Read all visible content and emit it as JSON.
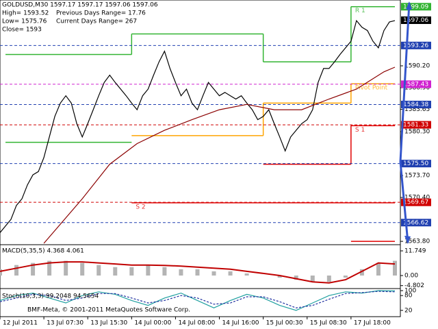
{
  "chart_data": {
    "type": "line",
    "title": "GOLDUSD,M30  1597.17 1597.17 1597.06 1597.06",
    "info": [
      "High= 1593.52",
      "Low= 1575.76",
      "Close= 1593",
      "Previous Days Range= 17.76",
      "Current Days Range= 267"
    ],
    "footer": "BMF-Meta, © 2001-2011 MetaQuotes Software Corp.",
    "xlim": [
      0,
      73
    ],
    "xticks": [
      {
        "value": 0,
        "label": "12 Jul 2011"
      },
      {
        "value": 8,
        "label": "13 Jul 07:30"
      },
      {
        "value": 16,
        "label": "13 Jul 15:30"
      },
      {
        "value": 24,
        "label": "14 Jul 00:00"
      },
      {
        "value": 32,
        "label": "14 Jul 08:00"
      },
      {
        "value": 40,
        "label": "14 Jul 16:00"
      },
      {
        "value": 48,
        "label": "15 Jul 00:30"
      },
      {
        "value": 56,
        "label": "15 Jul 08:30"
      },
      {
        "value": 64,
        "label": "17 Jul 18:00"
      }
    ],
    "ylim": [
      1563.4,
      1600.1
    ],
    "yticks": [
      {
        "value": 1590.2,
        "label": "1590.20"
      },
      {
        "value": 1586.9,
        "label": "1586.90"
      },
      1583.65,
      {
        "value": 1580.3,
        "label": "1580.30"
      },
      {
        "value": 1573.7,
        "label": "1573.70"
      },
      {
        "value": 1570.4,
        "label": "1570.40"
      },
      {
        "value": 1563.8,
        "label": "1563.80"
      }
    ],
    "price_labels": [
      {
        "value": 1599.09,
        "label": "1599.09",
        "color": "#32b432",
        "dashed": false
      },
      {
        "value": 1597.06,
        "label": "1597.06",
        "color": "#000000",
        "dashed": false
      },
      {
        "value": 1593.26,
        "label": "1593.26",
        "color": "#2040b0",
        "dashed": true
      },
      {
        "value": 1587.43,
        "label": "1587.43",
        "color": "#d020d0",
        "dashed": true
      },
      {
        "value": 1584.38,
        "label": "1584.38",
        "color": "#2040b0",
        "dashed": true
      },
      {
        "value": 1581.33,
        "label": "1581.33",
        "color": "#d00000",
        "dashed": true
      },
      {
        "value": 1575.5,
        "label": "1575.50",
        "color": "#2040b0",
        "dashed": true
      },
      {
        "value": 1569.67,
        "label": "1569.67",
        "color": "#d00000",
        "dashed": true
      },
      {
        "value": 1566.62,
        "label": "1566.62",
        "color": "#2040b0",
        "dashed": true
      }
    ],
    "series": [
      {
        "color": "#000000",
        "x": [
          0,
          1,
          2,
          3,
          4,
          5,
          6,
          7,
          8,
          9,
          10,
          11,
          12,
          13,
          14,
          15,
          16,
          17,
          18,
          19,
          20,
          21,
          22,
          23,
          24,
          25,
          26,
          27,
          28,
          29,
          30,
          31,
          32,
          33,
          34,
          35,
          36,
          37,
          38,
          39,
          40,
          41,
          42,
          43,
          44,
          45,
          46,
          47,
          48,
          49,
          50,
          51,
          52,
          53,
          54,
          55,
          56,
          57,
          58,
          59,
          60,
          61,
          62,
          63,
          64,
          65,
          66,
          67,
          68,
          69,
          70,
          71,
          72
        ],
        "values": [
          1565.1,
          1566.1,
          1567.1,
          1569.2,
          1570.2,
          1572.3,
          1573.8,
          1574.3,
          1576.4,
          1579.5,
          1582.6,
          1584.6,
          1585.7,
          1584.6,
          1581.5,
          1579.5,
          1581.5,
          1583.6,
          1585.7,
          1587.7,
          1588.8,
          1587.7,
          1586.7,
          1585.7,
          1584.6,
          1583.6,
          1585.7,
          1586.7,
          1588.8,
          1590.8,
          1592.4,
          1589.8,
          1587.7,
          1585.7,
          1586.7,
          1584.6,
          1583.6,
          1585.7,
          1587.7,
          1586.7,
          1585.7,
          1586.2,
          1585.7,
          1585.2,
          1585.7,
          1584.6,
          1583.6,
          1582.1,
          1582.6,
          1583.6,
          1581.5,
          1579.5,
          1577.4,
          1579.5,
          1580.5,
          1581.5,
          1582.1,
          1583.6,
          1587.7,
          1589.8,
          1589.8,
          1590.8,
          1591.9,
          1592.9,
          1593.9,
          1597.0,
          1596.0,
          1595.5,
          1593.9,
          1592.9,
          1595.5,
          1596.8,
          1597.0
        ]
      },
      {
        "color": "#8b0000",
        "x": [
          8,
          15,
          20,
          25,
          30,
          35,
          40,
          45,
          50,
          55,
          60,
          65,
          70,
          72
        ],
        "values": [
          1563.5,
          1570.2,
          1575.4,
          1578.5,
          1580.5,
          1582.1,
          1583.6,
          1584.4,
          1583.6,
          1583.6,
          1585.2,
          1586.7,
          1589.3,
          1590.0
        ]
      }
    ],
    "levels": [
      {
        "label": "R 1",
        "color": "#32b432",
        "segments": [
          [
            1,
            24,
            1591.9
          ],
          [
            24,
            48,
            1595.0
          ],
          [
            48,
            64,
            1590.8
          ],
          [
            64,
            72,
            1599.1
          ]
        ]
      },
      {
        "color": "#32b432",
        "segments": [
          [
            1,
            24,
            1578.7
          ]
        ]
      },
      {
        "label": "Pivot Point",
        "color": "#ffa500",
        "segments": [
          [
            24,
            48,
            1579.7
          ],
          [
            48,
            64,
            1584.6
          ],
          [
            64,
            72,
            1587.5
          ]
        ]
      },
      {
        "label": "S 1",
        "color": "#e00000",
        "segments": [
          [
            48,
            64,
            1575.4
          ],
          [
            64,
            72,
            1581.2
          ]
        ]
      },
      {
        "label": "S 2",
        "color": "#e00000",
        "segments": [
          [
            24,
            72,
            1569.6
          ]
        ]
      },
      {
        "color": "#e00000",
        "segments": [
          [
            64,
            72,
            1563.8
          ]
        ]
      }
    ],
    "macd": {
      "title": "MACD(5,35,5) 4.368 4.061",
      "ylim": [
        -5.88,
        14.36
      ],
      "yticks": [
        11.749,
        {
          "value": 0,
          "label": "0.00"
        },
        -4.802
      ],
      "x": [
        0,
        3,
        6,
        9,
        12,
        15,
        18,
        21,
        24,
        27,
        30,
        33,
        36,
        39,
        42,
        45,
        48,
        51,
        54,
        57,
        60,
        63,
        66,
        69,
        72
      ],
      "histogram": {
        "color": "#b4b4b4",
        "values": [
          3,
          5,
          6,
          7,
          7,
          6,
          5,
          4,
          4,
          5,
          4,
          3,
          3,
          2,
          2,
          1,
          0,
          -1,
          -2,
          -3,
          -3,
          -1,
          3,
          6,
          7
        ]
      },
      "signal": {
        "color": "#c00000",
        "values": [
          2,
          3.5,
          5,
          6,
          6.5,
          6.5,
          6,
          5.5,
          5,
          5,
          4.8,
          4.5,
          4,
          3.5,
          3,
          2,
          1,
          0,
          -1.5,
          -3,
          -3.5,
          -2,
          2,
          6,
          5.5
        ]
      }
    },
    "stoch": {
      "title": "Stoch(10,3,3) 99.2048 94.5654",
      "ylim": [
        0,
        100
      ],
      "yticks": [
        100,
        80,
        20
      ],
      "x": [
        0,
        3,
        6,
        9,
        12,
        15,
        18,
        21,
        24,
        27,
        30,
        33,
        36,
        39,
        42,
        45,
        48,
        51,
        54,
        57,
        60,
        63,
        66,
        69,
        72
      ],
      "main": {
        "color": "#20a0a0",
        "values": [
          60,
          80,
          90,
          70,
          50,
          80,
          95,
          85,
          60,
          40,
          70,
          90,
          60,
          30,
          60,
          85,
          70,
          40,
          20,
          50,
          80,
          95,
          90,
          100,
          99
        ]
      },
      "signal": {
        "color": "#2030a0",
        "values": [
          55,
          70,
          85,
          80,
          60,
          70,
          88,
          88,
          70,
          50,
          60,
          80,
          70,
          45,
          50,
          75,
          75,
          55,
          30,
          40,
          65,
          88,
          92,
          97,
          95
        ]
      }
    }
  }
}
